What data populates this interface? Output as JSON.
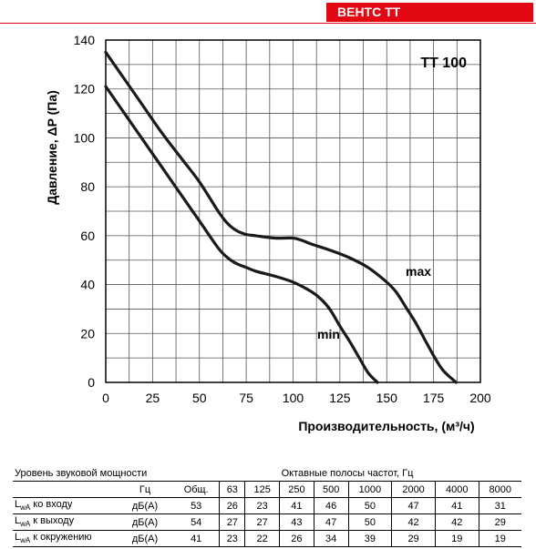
{
  "brand": "ВЕНТС ТТ",
  "chart_data": {
    "type": "line",
    "model": "TT 100",
    "xlabel": "Производительность, (м³/ч)",
    "ylabel": "Давление, ΔP (Па)",
    "xlim": [
      0,
      200
    ],
    "ylim": [
      0,
      140
    ],
    "xticks": [
      "0",
      "25",
      "50",
      "75",
      "100",
      "125",
      "150",
      "175",
      "200"
    ],
    "yticks": [
      "0",
      "20",
      "40",
      "60",
      "80",
      "100",
      "120",
      "140"
    ],
    "grid": true,
    "series": [
      {
        "name": "max",
        "x": [
          0,
          10,
          20,
          30,
          40,
          50,
          60,
          65,
          70,
          75,
          80,
          90,
          100,
          105,
          110,
          120,
          130,
          140,
          150,
          155,
          160,
          165,
          170,
          175,
          180,
          187
        ],
        "y": [
          135,
          124,
          113,
          102,
          92,
          82,
          70,
          65,
          62,
          60.5,
          60,
          59,
          59,
          58,
          56.5,
          54,
          51,
          47,
          41,
          37,
          31,
          25,
          18,
          11,
          5,
          0
        ]
      },
      {
        "name": "min",
        "x": [
          0,
          10,
          20,
          30,
          40,
          50,
          60,
          65,
          70,
          75,
          80,
          90,
          100,
          110,
          115,
          120,
          125,
          130,
          135,
          140,
          145
        ],
        "y": [
          121,
          110,
          99,
          88,
          77,
          66,
          55,
          51,
          48.5,
          47,
          45.5,
          43.5,
          41,
          37,
          34,
          29.5,
          23,
          17,
          10.5,
          4,
          0
        ]
      }
    ]
  },
  "table": {
    "header_left": "Уровень звуковой мощности",
    "header_right": "Октавные полосы частот, Гц",
    "unit_header": "Гц",
    "columns": [
      "Общ.",
      "63",
      "125",
      "250",
      "500",
      "1000",
      "2000",
      "4000",
      "8000"
    ],
    "rows": [
      {
        "label_main": "L",
        "label_sub": "wA",
        "label_rest": " ко входу",
        "unit": "дБ(А)",
        "values": [
          "53",
          "26",
          "23",
          "41",
          "46",
          "50",
          "47",
          "41",
          "31"
        ]
      },
      {
        "label_main": "L",
        "label_sub": "wA",
        "label_rest": " к выходу",
        "unit": "дБ(А)",
        "values": [
          "54",
          "27",
          "27",
          "43",
          "47",
          "50",
          "42",
          "42",
          "29"
        ]
      },
      {
        "label_main": "L",
        "label_sub": "wA",
        "label_rest": " к окружению",
        "unit": "дБ(А)",
        "values": [
          "41",
          "23",
          "22",
          "26",
          "34",
          "39",
          "29",
          "19",
          "19"
        ]
      }
    ]
  }
}
